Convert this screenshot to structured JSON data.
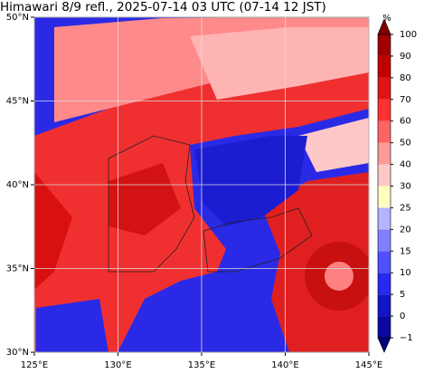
{
  "chart_data": {
    "type": "map",
    "title": "Himawari 8/9 refl., 2025-07-14 03 UTC (07-14 12 JST)",
    "xlim": [
      125,
      145
    ],
    "xticks": [
      {
        "value": 125,
        "label": "125°E"
      },
      {
        "value": 130,
        "label": "130°E"
      },
      {
        "value": 135,
        "label": "135°E"
      },
      {
        "value": 140,
        "label": "140°E"
      },
      {
        "value": 145,
        "label": "145°E"
      }
    ],
    "ylim": [
      30,
      50
    ],
    "yticks": [
      {
        "value": 30,
        "label": "30°N"
      },
      {
        "value": 35,
        "label": "35°N"
      },
      {
        "value": 40,
        "label": "40°N"
      },
      {
        "value": 45,
        "label": "45°N"
      },
      {
        "value": 50,
        "label": "50°N"
      }
    ],
    "grid": true,
    "colorbar": {
      "label": "%",
      "ticks": [
        {
          "value": -1,
          "label": "−1"
        },
        0,
        5,
        10,
        15,
        20,
        25,
        30,
        40,
        50,
        60,
        70,
        80,
        90,
        100
      ],
      "colors": [
        "#0a0aa0",
        "#1414c8",
        "#2828f0",
        "#5050ff",
        "#8080ff",
        "#b4b4ff",
        "#ffffc0",
        "#ffc8c8",
        "#ff9a9a",
        "#ff6464",
        "#ff3030",
        "#e01414",
        "#c00000",
        "#a00000"
      ],
      "under_color": "#000080",
      "over_color": "#800000"
    }
  }
}
